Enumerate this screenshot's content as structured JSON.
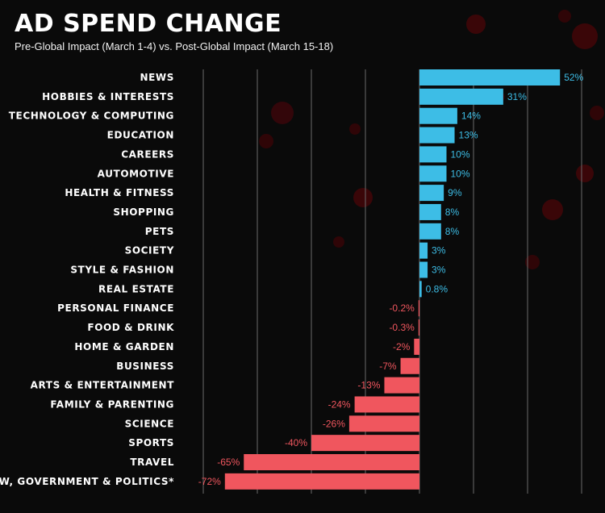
{
  "chart_data": {
    "type": "bar",
    "orientation": "horizontal",
    "title": "AD SPEND CHANGE",
    "subtitle": "Pre-Global Impact (March 1-4) vs. Post-Global Impact (March 15-18)",
    "xlabel": "",
    "ylabel": "",
    "xlim": [
      -80,
      60
    ],
    "grid": true,
    "legend": "none",
    "categories": [
      "NEWS",
      "HOBBIES & INTERESTS",
      "TECHNOLOGY & COMPUTING",
      "EDUCATION",
      "CAREERS",
      "AUTOMOTIVE",
      "HEALTH & FITNESS",
      "SHOPPING",
      "PETS",
      "SOCIETY",
      "STYLE & FASHION",
      "REAL ESTATE",
      "PERSONAL FINANCE",
      "FOOD & DRINK",
      "HOME & GARDEN",
      "BUSINESS",
      "ARTS & ENTERTAINMENT",
      "FAMILY & PARENTING",
      "SCIENCE",
      "SPORTS",
      "TRAVEL",
      "LAW, GOVERNMENT & POLITICS*"
    ],
    "values": [
      52,
      31,
      14,
      13,
      10,
      10,
      9,
      8,
      8,
      3,
      3,
      0.8,
      -0.2,
      -0.3,
      -2,
      -7,
      -13,
      -24,
      -26,
      -40,
      -65,
      -72
    ],
    "value_labels": [
      "52%",
      "31%",
      "14%",
      "13%",
      "10%",
      "10%",
      "9%",
      "8%",
      "8%",
      "3%",
      "3%",
      "0.8%",
      "-0.2%",
      "-0.3%",
      "-2%",
      "-7%",
      "-13%",
      "-24%",
      "-26%",
      "-40%",
      "-65%",
      "-72%"
    ],
    "colors": {
      "positive": "#3dbde6",
      "negative": "#f0565e",
      "grid": "#6b6b6b",
      "background": "#0a0a0a"
    }
  }
}
